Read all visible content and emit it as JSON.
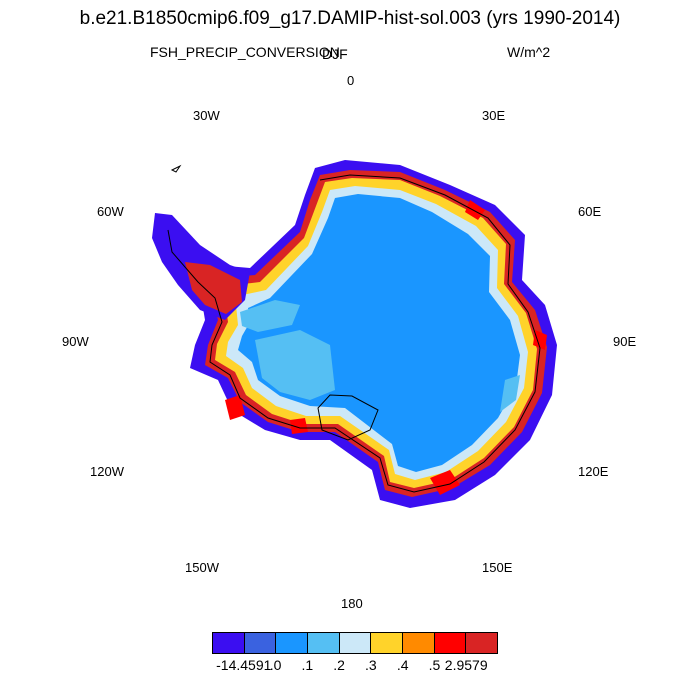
{
  "title": "b.e21.B1850cmip6.f09_g17.DAMIP-hist-sol.003 (yrs 1990-2014)",
  "variable": "FSH_PRECIP_CONVERSION",
  "season": "DJF",
  "units": "W/m^2",
  "lon_labels": {
    "l0": "0",
    "l30e": "30E",
    "l60e": "60E",
    "l90e": "90E",
    "l120e": "120E",
    "l150e": "150E",
    "l180": "180",
    "l150w": "150W",
    "l120w": "120W",
    "l90w": "90W",
    "l60w": "60W",
    "l30w": "30W"
  },
  "colorbar": {
    "colors": [
      "#3b0ef1",
      "#3a62e0",
      "#1a96ff",
      "#55bff3",
      "#cce8f8",
      "#ffd32a",
      "#ff8a00",
      "#ff0000",
      "#d92424"
    ],
    "labels": [
      "-14.4591",
      ".0",
      ".1",
      ".2",
      ".3",
      ".4",
      ".5",
      "2.9579"
    ]
  },
  "colors": {
    "ice": "#1a96ff",
    "light": "#55bff3",
    "outline": "#000000"
  }
}
